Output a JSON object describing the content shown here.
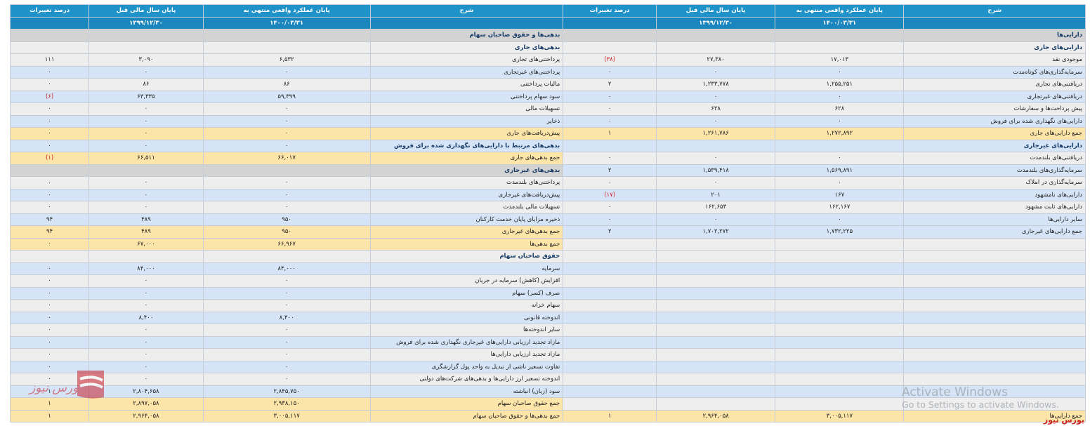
{
  "header": {
    "assets_desc": "شرح",
    "assets_current": "پایان عملکرد واقعی منتهی به",
    "assets_prior": "پایان سال مالی قبل",
    "assets_change": "درصد تغییرات",
    "liab_desc": "شرح",
    "liab_current": "پایان عملکرد واقعی منتهی به",
    "liab_prior": "پایان سال مالی قبل",
    "liab_change": "درصد تغییرات",
    "date_current": "۱۴۰۰/۰۳/۳۱",
    "date_prior": "۱۳۹۹/۱۲/۳۰"
  },
  "rows": [
    {
      "t": "sec",
      "a": [
        "دارایی‌ها",
        "",
        "",
        ""
      ],
      "b": [
        "بدهی‌ها و حقوق صاحبان سهام",
        "",
        "",
        ""
      ]
    },
    {
      "t": "sub odd",
      "a": [
        "دارایی‌های جاری",
        "",
        "",
        ""
      ],
      "b": [
        "بدهی‌های جاری",
        "",
        "",
        ""
      ]
    },
    {
      "t": "odd",
      "a": [
        "موجودی نقد",
        "۱۷,۰۱۳",
        "۲۷,۳۸۰",
        "(۳۸)"
      ],
      "b": [
        "پرداختنی‌های تجاری",
        "۶,۵۳۲",
        "۳,۰۹۰",
        "۱۱۱"
      ]
    },
    {
      "t": "even",
      "a": [
        "سرمایه‌گذاری‌های کوتاه‌مدت",
        "۰",
        "۰",
        "۰"
      ],
      "b": [
        "پرداختنی‌های غیرتجاری",
        "۰",
        "۰",
        "۰"
      ]
    },
    {
      "t": "odd",
      "a": [
        "دریافتنی‌های تجاری",
        "۱,۲۵۵,۲۵۱",
        "۱,۲۳۳,۷۷۸",
        "۲"
      ],
      "b": [
        "مالیات پرداختنی",
        "۸۶",
        "۸۶",
        "۰"
      ]
    },
    {
      "t": "even",
      "a": [
        "دریافتنی‌های غیرتجاری",
        "۰",
        "۰",
        "۰"
      ],
      "b": [
        "سود سهام پرداختنی",
        "۵۹,۳۹۹",
        "۶۳,۳۳۵",
        "(۶)"
      ]
    },
    {
      "t": "odd",
      "a": [
        "پیش پرداخت‌ها و سفارشات",
        "۶۲۸",
        "۶۲۸",
        "۰"
      ],
      "b": [
        "تسهیلات مالی",
        "۰",
        "۰",
        "۰"
      ]
    },
    {
      "t": "even",
      "a": [
        "دارایی‌های نگهداری شده برای فروش",
        "۰",
        "۰",
        "۰"
      ],
      "b": [
        "ذخایر",
        "۰",
        "۰",
        "۰"
      ]
    },
    {
      "t": "tot",
      "a": [
        "جمع دارایی‌های جاری",
        "۱,۲۷۲,۸۹۲",
        "۱,۲۶۱,۷۸۶",
        "۱"
      ],
      "b": [
        "پیش‌دریافت‌های جاری",
        "۰",
        "۰",
        "۰"
      ]
    },
    {
      "t": "sub even",
      "a": [
        "دارایی‌های غیرجاری",
        "",
        "",
        ""
      ],
      "b": [
        "بدهی‌های مرتبط با دارایی‌های نگهداری شده برای فروش",
        "۰",
        "۰",
        "۰"
      ]
    },
    {
      "t": "odd",
      "a": [
        "دریافتنی‌های بلندمدت",
        "۰",
        "۰",
        "۰"
      ],
      "b": [
        "جمع بدهی‌های جاری",
        "۶۶,۰۱۷",
        "۶۶,۵۱۱",
        "(۱)"
      ],
      "bt": "tot"
    },
    {
      "t": "even",
      "a": [
        "سرمایه‌گذاری‌های بلندمدت",
        "۱,۵۶۹,۸۹۱",
        "۱,۵۳۹,۴۱۸",
        "۲"
      ],
      "b": [
        "بدهی‌های غیرجاری",
        "",
        "",
        ""
      ],
      "bt": "sec"
    },
    {
      "t": "odd",
      "a": [
        "سرمایه‌گذاری در املاک",
        "۰",
        "۰",
        "۰"
      ],
      "b": [
        "پرداختنی‌های بلندمدت",
        "۰",
        "۰",
        "۰"
      ]
    },
    {
      "t": "even",
      "a": [
        "دارایی‌های نامشهود",
        "۱۶۷",
        "۲۰۱",
        "(۱۷)"
      ],
      "b": [
        "پیش‌دریافت‌های غیرجاری",
        "۰",
        "۰",
        "۰"
      ]
    },
    {
      "t": "odd",
      "a": [
        "دارایی‌های ثابت مشهود",
        "۱۶۲,۱۶۷",
        "۱۶۲,۶۵۳",
        "۰"
      ],
      "b": [
        "تسهیلات مالی بلندمدت",
        "۰",
        "۰",
        "۰"
      ]
    },
    {
      "t": "even",
      "a": [
        "سایر دارایی‌ها",
        "۰",
        "۰",
        "۰"
      ],
      "b": [
        "ذخیره مزایای پایان خدمت کارکنان",
        "۹۵۰",
        "۴۸۹",
        "۹۴"
      ]
    },
    {
      "t": "even",
      "a": [
        "جمع دارایی‌های غیرجاری",
        "۱,۷۳۲,۲۲۵",
        "۱,۷۰۲,۲۷۲",
        "۲"
      ],
      "b": [
        "جمع بدهی‌های غیرجاری",
        "۹۵۰",
        "۴۸۹",
        "۹۴"
      ],
      "bt": "tot"
    },
    {
      "t": "odd",
      "a": [
        "",
        "",
        "",
        ""
      ],
      "b": [
        "جمع بدهی‌ها",
        "۶۶,۹۶۷",
        "۶۷,۰۰۰",
        "۰"
      ],
      "bt": "tot"
    },
    {
      "t": "odd",
      "a": [
        "",
        "",
        "",
        ""
      ],
      "b": [
        "حقوق صاحبان سهام",
        "",
        "",
        ""
      ],
      "bt": "sub odd"
    },
    {
      "t": "even",
      "a": [
        "",
        "",
        "",
        ""
      ],
      "b": [
        "سرمایه",
        "۸۴,۰۰۰",
        "۸۴,۰۰۰",
        "۰"
      ]
    },
    {
      "t": "odd",
      "a": [
        "",
        "",
        "",
        ""
      ],
      "b": [
        "افزایش (کاهش) سرمایه در جریان",
        "۰",
        "۰",
        "۰"
      ]
    },
    {
      "t": "even",
      "a": [
        "",
        "",
        "",
        ""
      ],
      "b": [
        "صرف (کسر) سهام",
        "۰",
        "۰",
        "۰"
      ]
    },
    {
      "t": "odd",
      "a": [
        "",
        "",
        "",
        ""
      ],
      "b": [
        "سهام خزانه",
        "۰",
        "۰",
        "۰"
      ]
    },
    {
      "t": "even",
      "a": [
        "",
        "",
        "",
        ""
      ],
      "b": [
        "اندوخته قانونی",
        "۸,۴۰۰",
        "۸,۴۰۰",
        "۰"
      ]
    },
    {
      "t": "odd",
      "a": [
        "",
        "",
        "",
        ""
      ],
      "b": [
        "سایر اندوخته‌ها",
        "۰",
        "۰",
        "۰"
      ]
    },
    {
      "t": "even",
      "a": [
        "",
        "",
        "",
        ""
      ],
      "b": [
        "مازاد تجدید ارزیابی دارایی‌های غیرجاری نگهداری شده برای فروش",
        "۰",
        "۰",
        "۰"
      ]
    },
    {
      "t": "odd",
      "a": [
        "",
        "",
        "",
        ""
      ],
      "b": [
        "مازاد تجدید ارزیابی دارایی‌ها",
        "۰",
        "۰",
        "۰"
      ]
    },
    {
      "t": "even",
      "a": [
        "",
        "",
        "",
        ""
      ],
      "b": [
        "تفاوت تسعیر ناشی از تبدیل به واحد پول گزارشگری",
        "۰",
        "۰",
        "۰"
      ]
    },
    {
      "t": "odd",
      "a": [
        "",
        "",
        "",
        ""
      ],
      "b": [
        "اندوخته تسعیر ارز دارایی‌ها و بدهی‌های شرکت‌های دولتی",
        "۰",
        "۰",
        "۰"
      ]
    },
    {
      "t": "even",
      "a": [
        "",
        "",
        "",
        ""
      ],
      "b": [
        "سود (زیان) انباشته",
        "۲,۸۴۵,۷۵۰",
        "۲,۸۰۴,۶۵۸",
        "۱"
      ]
    },
    {
      "t": "odd",
      "a": [
        "",
        "",
        "",
        ""
      ],
      "b": [
        "جمع حقوق صاحبان سهام",
        "۲,۹۳۸,۱۵۰",
        "۲,۸۹۷,۰۵۸",
        "۱"
      ],
      "bt": "tot"
    },
    {
      "t": "tot",
      "a": [
        "جمع دارایی‌ها",
        "۳,۰۰۵,۱۱۷",
        "۲,۹۶۴,۰۵۸",
        "۱"
      ],
      "b": [
        "جمع بدهی‌ها و حقوق صاحبان سهام",
        "۳,۰۰۵,۱۱۷",
        "۲,۹۶۴,۰۵۸",
        "۱"
      ]
    }
  ],
  "overlay": {
    "activate_title": "Activate Windows",
    "activate_sub": "Go to Settings to activate Windows.",
    "brand": "بورس نیوز",
    "logo_text": "بورس نیوز",
    "logo_icon": "bourse-news-logo"
  }
}
